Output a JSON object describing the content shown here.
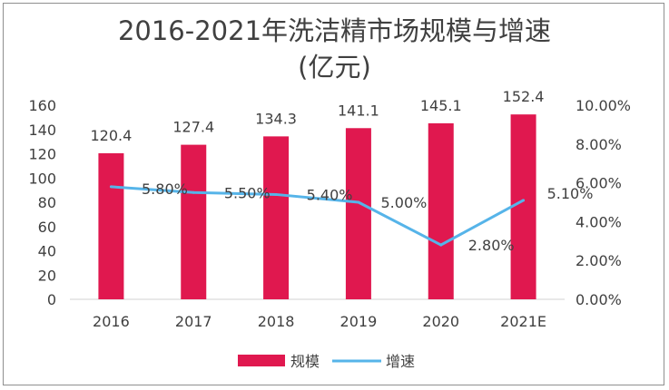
{
  "chart_data": {
    "type": "bar",
    "title": "2016-2021年洗洁精市场规模与增速",
    "subtitle": "(亿元)",
    "categories": [
      "2016",
      "2017",
      "2018",
      "2019",
      "2020",
      "2021E"
    ],
    "series": [
      {
        "name": "规模",
        "type": "bar",
        "axis": "left",
        "color": "#e0184f",
        "values": [
          120.4,
          127.4,
          134.3,
          141.1,
          145.1,
          152.4
        ],
        "labels": [
          "120.4",
          "127.4",
          "134.3",
          "141.1",
          "145.1",
          "152.4"
        ]
      },
      {
        "name": "增速",
        "type": "line",
        "axis": "right",
        "color": "#56b4e9",
        "values": [
          5.8,
          5.5,
          5.4,
          5.0,
          2.8,
          5.1
        ],
        "labels": [
          "5.80%",
          "5.50%",
          "5.40%",
          "5.00%",
          "2.80%",
          "5.10%"
        ]
      }
    ],
    "y_left": {
      "min": 0,
      "max": 160,
      "ticks": [
        "0",
        "20",
        "40",
        "60",
        "80",
        "100",
        "120",
        "140",
        "160"
      ]
    },
    "y_right": {
      "min": 0,
      "max": 10,
      "ticks": [
        "0.00%",
        "2.00%",
        "4.00%",
        "6.00%",
        "8.00%",
        "10.00%"
      ]
    },
    "grid": false,
    "legend": "bottom"
  }
}
